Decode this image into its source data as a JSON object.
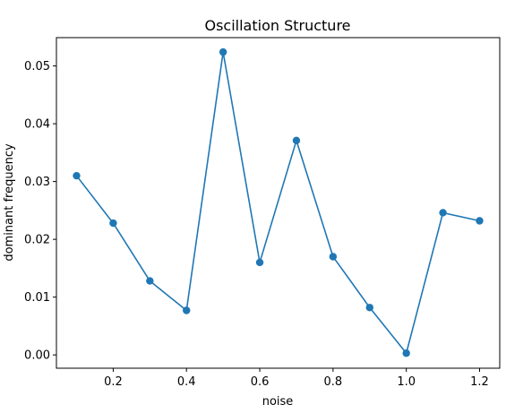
{
  "chart_data": {
    "type": "line",
    "title": "Oscillation Structure",
    "xlabel": "noise",
    "ylabel": "dominant frequency",
    "x": [
      0.1,
      0.2,
      0.3,
      0.4,
      0.5,
      0.6,
      0.7,
      0.8,
      0.9,
      1.0,
      1.1,
      1.2
    ],
    "series": [
      {
        "values": [
          0.031,
          0.0228,
          0.0128,
          0.0077,
          0.0524,
          0.016,
          0.0371,
          0.017,
          0.0082,
          0.0003,
          0.0246,
          0.0232
        ],
        "color": "#1f77b4",
        "marker": "circle"
      }
    ],
    "xticks": [
      0.2,
      0.4,
      0.6,
      0.8,
      1.0,
      1.2
    ],
    "xtick_labels": [
      "0.2",
      "0.4",
      "0.6",
      "0.8",
      "1.0",
      "1.2"
    ],
    "yticks": [
      0.0,
      0.01,
      0.02,
      0.03,
      0.04,
      0.05
    ],
    "ytick_labels": [
      "0.00",
      "0.01",
      "0.02",
      "0.03",
      "0.04",
      "0.05"
    ],
    "xlim": [
      0.045,
      1.255
    ],
    "ylim": [
      -0.0023,
      0.0549
    ],
    "grid": false,
    "legend": false
  }
}
